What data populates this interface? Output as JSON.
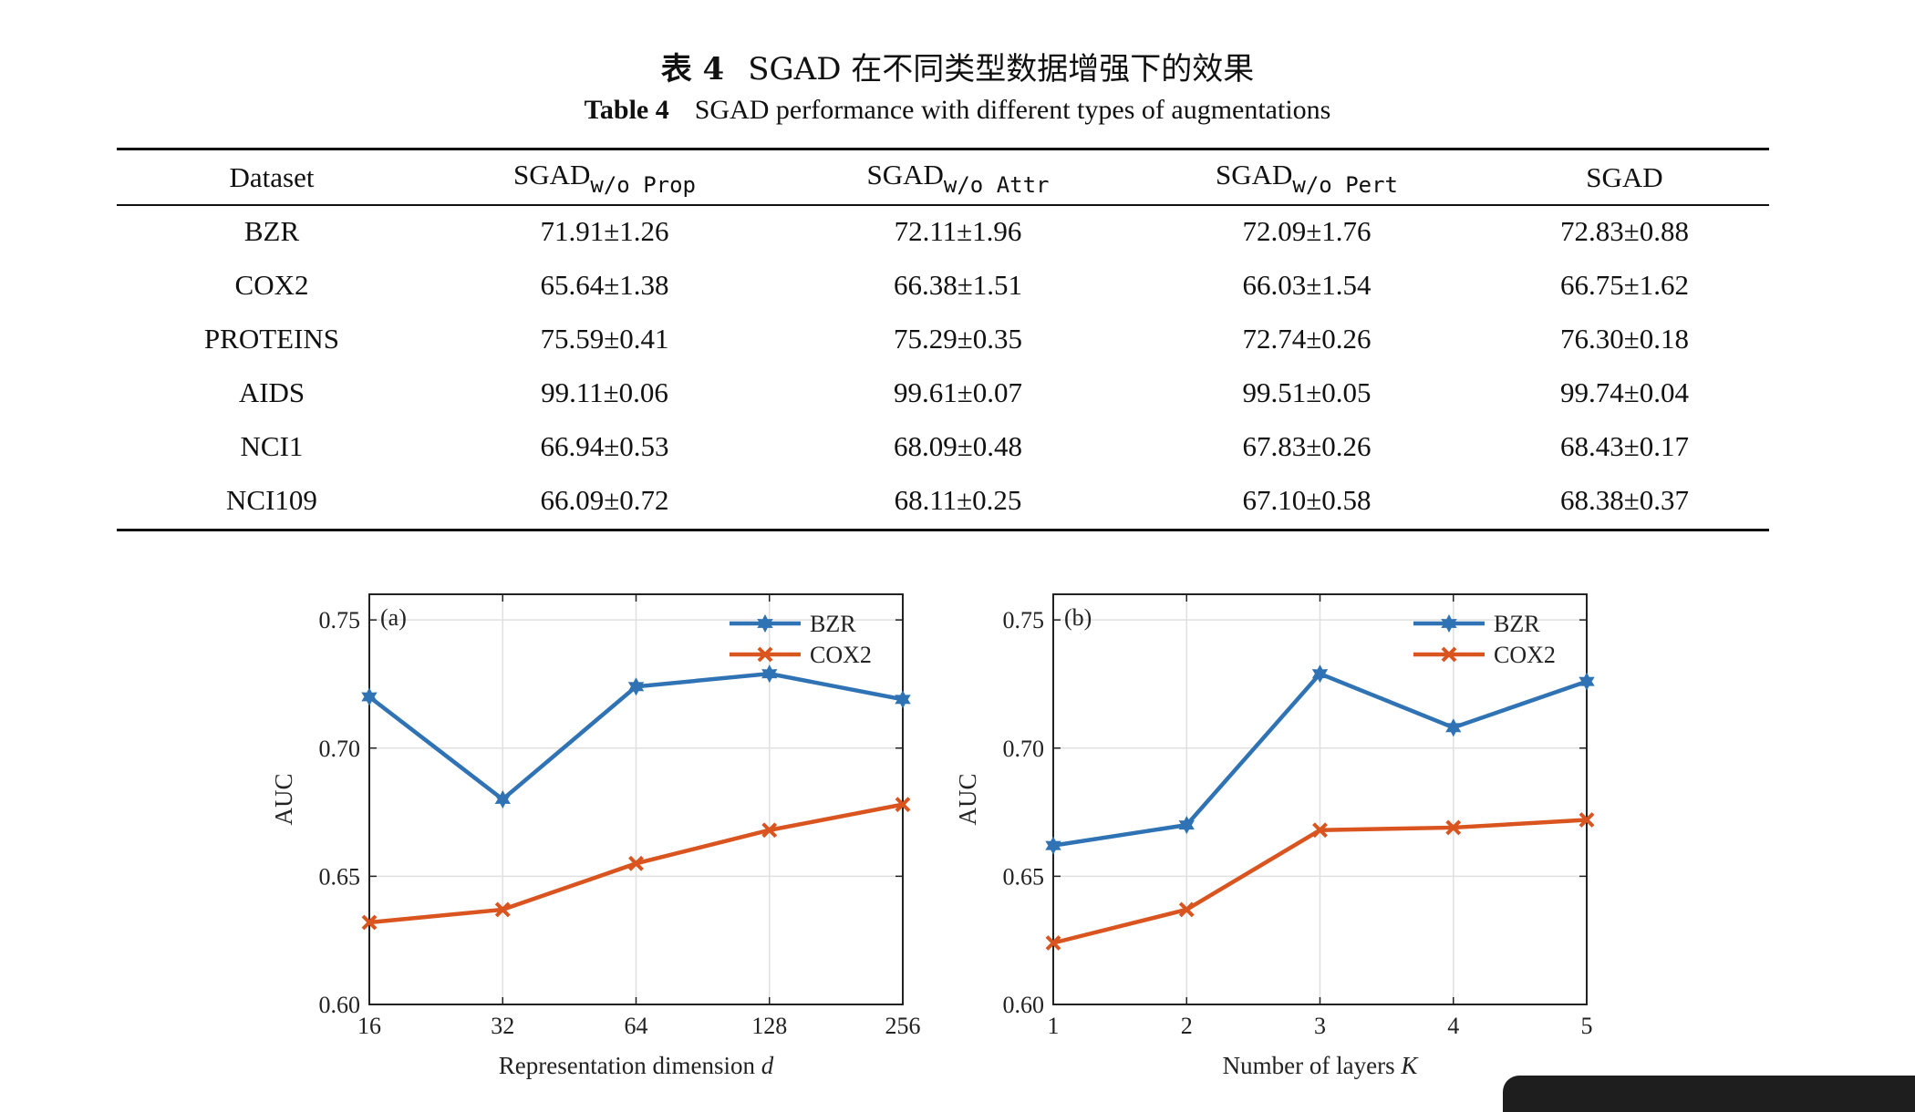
{
  "caption": {
    "cn_label": "表 4",
    "cn_title": "SGAD 在不同类型数据增强下的效果",
    "en_label": "Table 4",
    "en_title": "SGAD performance with different types of augmentations"
  },
  "table": {
    "headers": [
      {
        "main": "Dataset",
        "sub": ""
      },
      {
        "main": "SGAD",
        "sub": "w/o Prop"
      },
      {
        "main": "SGAD",
        "sub": "w/o Attr"
      },
      {
        "main": "SGAD",
        "sub": "w/o Pert"
      },
      {
        "main": "SGAD",
        "sub": ""
      }
    ],
    "rows": [
      [
        "BZR",
        "71.91±1.26",
        "72.11±1.96",
        "72.09±1.76",
        "72.83±0.88"
      ],
      [
        "COX2",
        "65.64±1.38",
        "66.38±1.51",
        "66.03±1.54",
        "66.75±1.62"
      ],
      [
        "PROTEINS",
        "75.59±0.41",
        "75.29±0.35",
        "72.74±0.26",
        "76.30±0.18"
      ],
      [
        "AIDS",
        "99.11±0.06",
        "99.61±0.07",
        "99.51±0.05",
        "99.74±0.04"
      ],
      [
        "NCI1",
        "66.94±0.53",
        "68.09±0.48",
        "67.83±0.26",
        "68.43±0.17"
      ],
      [
        "NCI109",
        "66.09±0.72",
        "68.11±0.25",
        "67.10±0.58",
        "68.38±0.37"
      ]
    ]
  },
  "chart_data": [
    {
      "type": "line",
      "panel_label": "(a)",
      "x": [
        "16",
        "32",
        "64",
        "128",
        "256"
      ],
      "xlabel": "Representation dimension",
      "xlabel_var": "d",
      "ylabel": "AUC",
      "ylim": [
        0.6,
        0.76
      ],
      "yticks": [
        "0.60",
        "0.65",
        "0.70",
        "0.75"
      ],
      "grid": true,
      "legend_position": "top-right",
      "series": [
        {
          "name": "BZR",
          "color": "#2f73b5",
          "marker": "star",
          "values": [
            0.72,
            0.68,
            0.724,
            0.729,
            0.719
          ]
        },
        {
          "name": "COX2",
          "color": "#d9541e",
          "marker": "x",
          "values": [
            0.632,
            0.637,
            0.655,
            0.668,
            0.678
          ]
        }
      ]
    },
    {
      "type": "line",
      "panel_label": "(b)",
      "x": [
        "1",
        "2",
        "3",
        "4",
        "5"
      ],
      "xlabel": "Number of layers",
      "xlabel_var": "K",
      "ylabel": "AUC",
      "ylim": [
        0.6,
        0.76
      ],
      "yticks": [
        "0.60",
        "0.65",
        "0.70",
        "0.75"
      ],
      "grid": true,
      "legend_position": "top-right",
      "series": [
        {
          "name": "BZR",
          "color": "#2f73b5",
          "marker": "star",
          "values": [
            0.662,
            0.67,
            0.729,
            0.708,
            0.726
          ]
        },
        {
          "name": "COX2",
          "color": "#d9541e",
          "marker": "x",
          "values": [
            0.624,
            0.637,
            0.668,
            0.669,
            0.672
          ]
        }
      ]
    }
  ]
}
